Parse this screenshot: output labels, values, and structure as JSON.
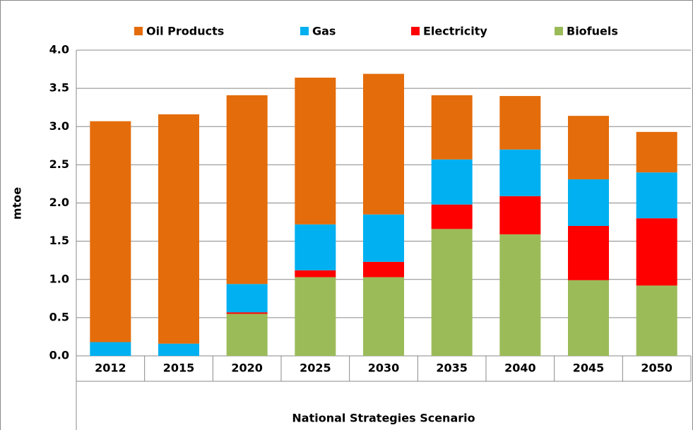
{
  "chart_data": {
    "type": "stacked_bar",
    "categories": [
      "2012",
      "2015",
      "2020",
      "2025",
      "2030",
      "2035",
      "2040",
      "2045",
      "2050"
    ],
    "group_label": "National Strategies Scenario",
    "y_label": "mtoe",
    "series": [
      {
        "name": "Oil Products",
        "color": "#e46c0a",
        "values": [
          2.89,
          3.0,
          2.47,
          1.92,
          1.84,
          0.84,
          0.7,
          0.83,
          0.53
        ]
      },
      {
        "name": "Gas",
        "color": "#00b0f0",
        "values": [
          0.18,
          0.16,
          0.37,
          0.6,
          0.62,
          0.59,
          0.61,
          0.61,
          0.6
        ]
      },
      {
        "name": "Electricity",
        "color": "#ff0000",
        "values": [
          0,
          0,
          0.02,
          0.09,
          0.2,
          0.32,
          0.5,
          0.71,
          0.88
        ]
      },
      {
        "name": "Biofuels",
        "color": "#9bbb59",
        "values": [
          0,
          0,
          0.55,
          1.03,
          1.03,
          1.66,
          1.59,
          0.99,
          0.92
        ]
      }
    ],
    "ylim": [
      0,
      4
    ],
    "yticks": [
      {
        "value": 0,
        "label": "0.0"
      },
      {
        "value": 0.5,
        "label": "0.5"
      },
      {
        "value": 1,
        "label": "1.0"
      },
      {
        "value": 1.5,
        "label": "1.5"
      },
      {
        "value": 2,
        "label": "2.0"
      },
      {
        "value": 2.5,
        "label": "2.5"
      },
      {
        "value": 3,
        "label": "3.0"
      },
      {
        "value": 3.5,
        "label": "3.5"
      },
      {
        "value": 4,
        "label": "4.0"
      }
    ],
    "grid": true,
    "legend": "top"
  }
}
